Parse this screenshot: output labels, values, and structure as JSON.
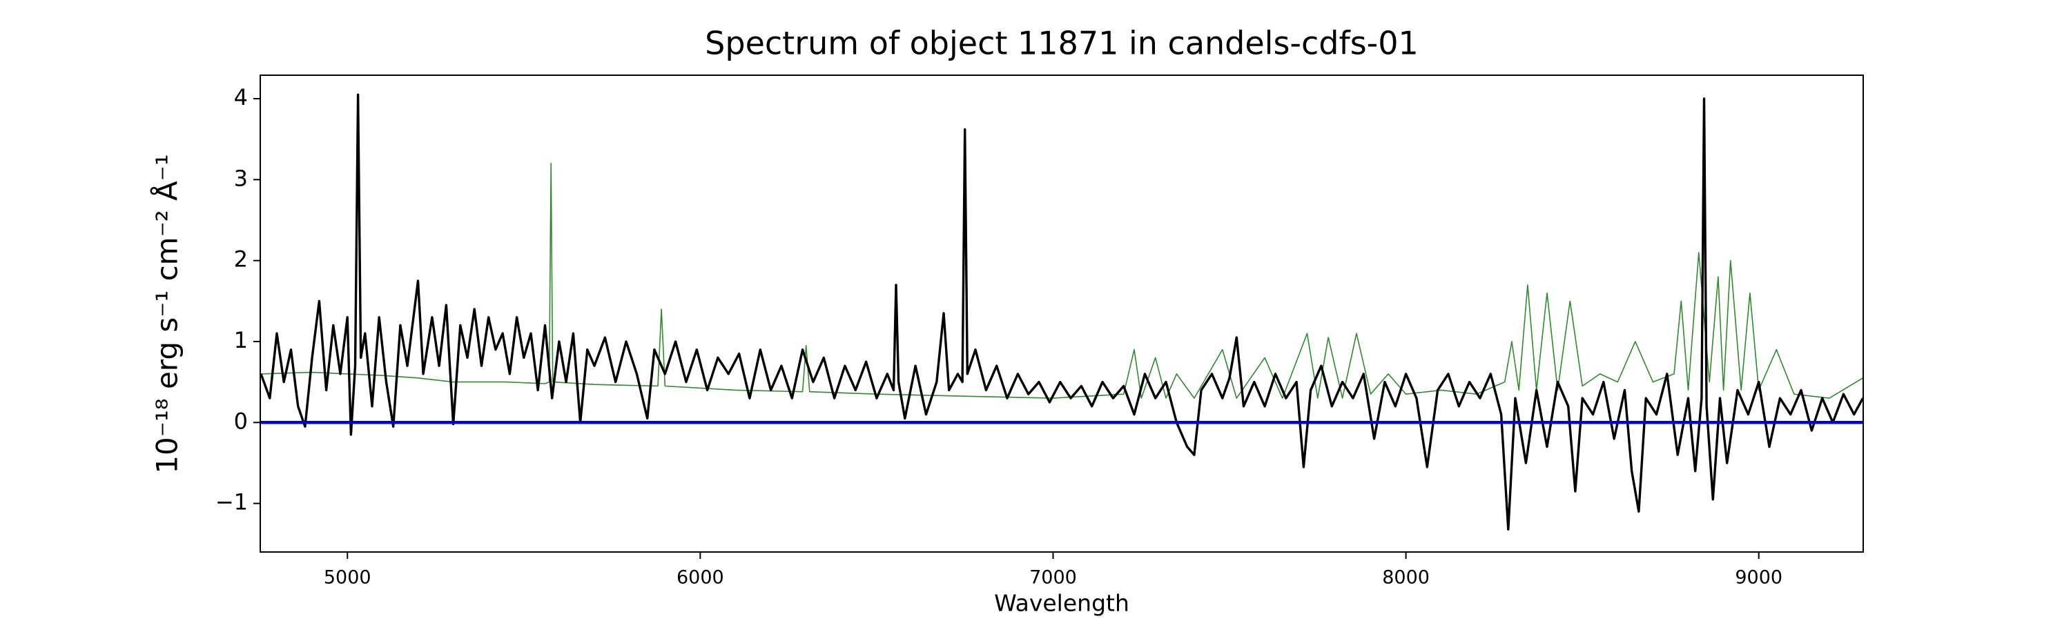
{
  "chart_data": {
    "type": "line",
    "title": "Spectrum of object 11871 in candels-cdfs-01",
    "xlabel": "Wavelength",
    "ylabel": "10⁻¹⁸ erg s⁻¹ cm⁻² Å⁻¹",
    "xlim": [
      4753,
      9296
    ],
    "ylim": [
      -1.6,
      4.29
    ],
    "xticks": [
      5000,
      6000,
      7000,
      8000,
      9000
    ],
    "yticks": [
      {
        "value": -1,
        "label": "−1"
      },
      0,
      1,
      2,
      3,
      4
    ],
    "series": [
      {
        "color": "#2e8b2e",
        "x": [
          4755,
          4900,
          5100,
          5200,
          5300,
          5450,
          5560,
          5572,
          5577,
          5582,
          5700,
          5880,
          5890,
          5900,
          6100,
          6290,
          6300,
          6310,
          6500,
          6800,
          7000,
          7200,
          7230,
          7250,
          7290,
          7320,
          7350,
          7400,
          7480,
          7520,
          7600,
          7650,
          7720,
          7750,
          7780,
          7820,
          7860,
          7900,
          7950,
          8000,
          8100,
          8200,
          8280,
          8300,
          8320,
          8345,
          8370,
          8400,
          8430,
          8465,
          8500,
          8550,
          8600,
          8650,
          8700,
          8760,
          8780,
          8800,
          8830,
          8860,
          8885,
          8900,
          8920,
          8950,
          8975,
          9000,
          9050,
          9100,
          9200,
          9295
        ],
        "values": [
          0.6,
          0.62,
          0.58,
          0.55,
          0.5,
          0.5,
          0.48,
          0.5,
          3.2,
          0.5,
          0.47,
          0.45,
          1.4,
          0.45,
          0.4,
          0.38,
          0.95,
          0.38,
          0.35,
          0.32,
          0.3,
          0.35,
          0.9,
          0.3,
          0.8,
          0.3,
          0.6,
          0.3,
          0.9,
          0.3,
          0.8,
          0.3,
          1.1,
          0.3,
          1.05,
          0.3,
          1.1,
          0.35,
          0.6,
          0.35,
          0.4,
          0.35,
          0.5,
          1.0,
          0.4,
          1.7,
          0.4,
          1.6,
          0.4,
          1.5,
          0.45,
          0.6,
          0.5,
          1.0,
          0.5,
          0.6,
          1.5,
          0.4,
          2.1,
          0.5,
          1.8,
          0.4,
          2.0,
          0.4,
          1.6,
          0.4,
          0.9,
          0.35,
          0.3,
          0.55
        ]
      },
      {
        "color": "#000000",
        "x": [
          4755,
          4780,
          4800,
          4820,
          4840,
          4860,
          4880,
          4900,
          4920,
          4940,
          4960,
          4980,
          5000,
          5010,
          5022,
          5030,
          5038,
          5050,
          5070,
          5090,
          5110,
          5130,
          5150,
          5170,
          5190,
          5200,
          5215,
          5240,
          5260,
          5280,
          5300,
          5320,
          5340,
          5360,
          5380,
          5400,
          5420,
          5440,
          5460,
          5480,
          5500,
          5520,
          5540,
          5560,
          5580,
          5600,
          5620,
          5640,
          5660,
          5680,
          5700,
          5730,
          5760,
          5790,
          5820,
          5850,
          5870,
          5900,
          5930,
          5960,
          5990,
          6020,
          6050,
          6080,
          6110,
          6140,
          6170,
          6200,
          6230,
          6260,
          6290,
          6320,
          6350,
          6380,
          6410,
          6440,
          6470,
          6500,
          6530,
          6548,
          6555,
          6562,
          6580,
          6610,
          6640,
          6670,
          6690,
          6705,
          6730,
          6743,
          6750,
          6757,
          6780,
          6810,
          6840,
          6870,
          6900,
          6930,
          6960,
          6990,
          7020,
          7050,
          7080,
          7110,
          7140,
          7170,
          7200,
          7230,
          7260,
          7290,
          7320,
          7350,
          7380,
          7400,
          7420,
          7450,
          7480,
          7500,
          7520,
          7540,
          7570,
          7600,
          7630,
          7660,
          7690,
          7710,
          7730,
          7760,
          7790,
          7820,
          7850,
          7880,
          7910,
          7940,
          7970,
          8000,
          8030,
          8060,
          8090,
          8120,
          8150,
          8180,
          8210,
          8240,
          8270,
          8290,
          8310,
          8340,
          8370,
          8400,
          8430,
          8460,
          8480,
          8500,
          8530,
          8560,
          8590,
          8620,
          8640,
          8660,
          8680,
          8710,
          8740,
          8770,
          8800,
          8820,
          8838,
          8845,
          8852,
          8870,
          8890,
          8910,
          8940,
          8970,
          9000,
          9030,
          9060,
          9090,
          9120,
          9150,
          9180,
          9210,
          9240,
          9270,
          9295
        ],
        "values": [
          0.6,
          0.3,
          1.1,
          0.5,
          0.9,
          0.2,
          -0.05,
          0.8,
          1.5,
          0.4,
          1.2,
          0.6,
          1.3,
          -0.15,
          0.7,
          4.05,
          0.8,
          1.1,
          0.2,
          1.3,
          0.5,
          -0.05,
          1.2,
          0.7,
          1.4,
          1.75,
          0.6,
          1.3,
          0.7,
          1.45,
          -0.02,
          1.2,
          0.8,
          1.4,
          0.7,
          1.3,
          0.9,
          1.1,
          0.6,
          1.3,
          0.8,
          1.1,
          0.4,
          1.2,
          0.3,
          1.0,
          0.5,
          1.1,
          0.0,
          0.9,
          0.7,
          1.05,
          0.5,
          1.0,
          0.6,
          0.05,
          0.9,
          0.6,
          1.0,
          0.5,
          0.9,
          0.4,
          0.8,
          0.6,
          0.85,
          0.3,
          0.9,
          0.4,
          0.7,
          0.3,
          0.9,
          0.5,
          0.8,
          0.3,
          0.7,
          0.4,
          0.75,
          0.3,
          0.6,
          0.4,
          1.7,
          0.5,
          0.05,
          0.7,
          0.1,
          0.5,
          1.35,
          0.4,
          0.6,
          0.5,
          3.62,
          0.6,
          0.9,
          0.4,
          0.7,
          0.3,
          0.6,
          0.35,
          0.5,
          0.25,
          0.5,
          0.3,
          0.45,
          0.2,
          0.5,
          0.3,
          0.45,
          0.1,
          0.6,
          0.3,
          0.5,
          0.0,
          -0.3,
          -0.4,
          0.4,
          0.6,
          0.3,
          0.55,
          1.05,
          0.2,
          0.5,
          0.2,
          0.6,
          0.3,
          0.5,
          -0.55,
          0.4,
          0.7,
          0.2,
          0.5,
          0.3,
          0.6,
          -0.2,
          0.5,
          0.2,
          0.6,
          0.3,
          -0.55,
          0.4,
          0.6,
          0.2,
          0.5,
          0.3,
          0.6,
          0.1,
          -1.32,
          0.3,
          -0.5,
          0.4,
          -0.3,
          0.5,
          0.2,
          -0.85,
          0.3,
          0.1,
          0.5,
          -0.2,
          0.4,
          -0.6,
          -1.1,
          0.3,
          0.1,
          0.6,
          -0.4,
          0.3,
          -0.6,
          0.3,
          4.0,
          0.2,
          -0.95,
          0.3,
          -0.5,
          0.4,
          0.1,
          0.5,
          -0.3,
          0.3,
          0.1,
          0.4,
          -0.1,
          0.3,
          0.0,
          0.35,
          0.1,
          0.3
        ]
      },
      {
        "color": "#0000cc",
        "x": [
          4753,
          9296
        ],
        "values": [
          0,
          0
        ]
      }
    ]
  }
}
